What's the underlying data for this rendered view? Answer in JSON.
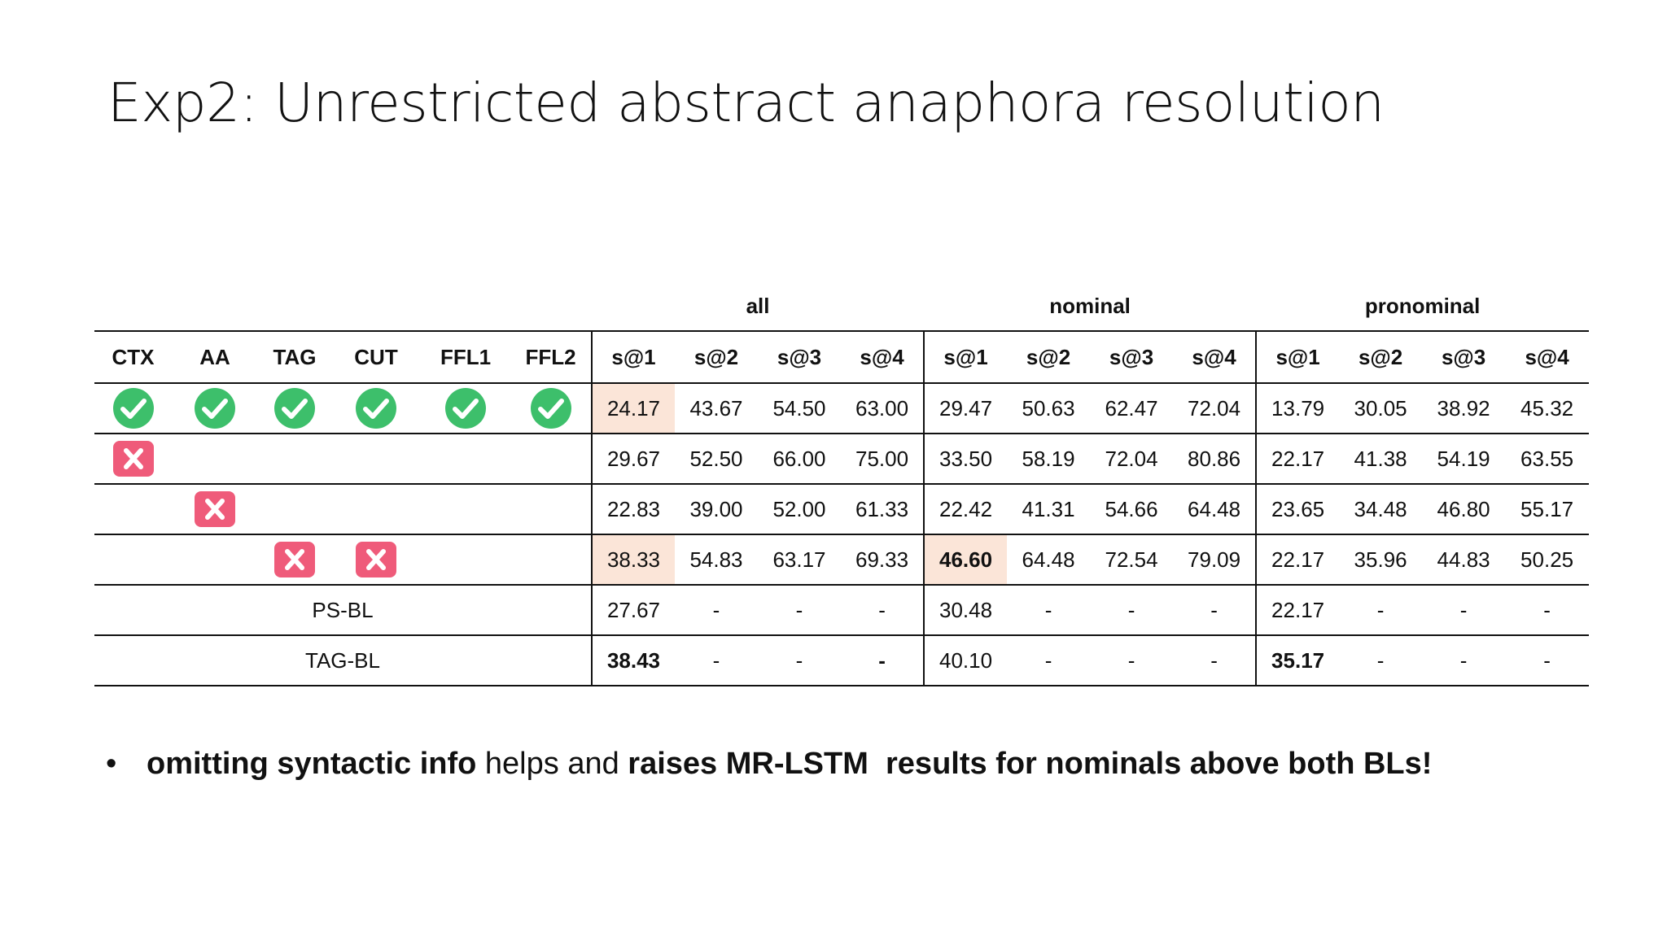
{
  "title": "Exp2: Unrestricted abstract anaphora resolution",
  "table": {
    "group_headers": [
      "all",
      "nominal",
      "pronominal"
    ],
    "feature_headers": [
      "CTX",
      "AA",
      "TAG",
      "CUT",
      "FFL1",
      "FFL2"
    ],
    "metric_headers": [
      "s@1",
      "s@2",
      "s@3",
      "s@4",
      "s@1",
      "s@2",
      "s@3",
      "s@4",
      "s@1",
      "s@2",
      "s@3",
      "s@4"
    ],
    "rows": [
      {
        "features": [
          "check",
          "check",
          "check",
          "check",
          "check",
          "check"
        ],
        "values": [
          "24.17",
          "43.67",
          "54.50",
          "63.00",
          "29.47",
          "50.63",
          "62.47",
          "72.04",
          "13.79",
          "30.05",
          "38.92",
          "45.32"
        ],
        "highlight": [
          0
        ],
        "bold": []
      },
      {
        "features": [
          "cross",
          "",
          "",
          "",
          "",
          ""
        ],
        "values": [
          "29.67",
          "52.50",
          "66.00",
          "75.00",
          "33.50",
          "58.19",
          "72.04",
          "80.86",
          "22.17",
          "41.38",
          "54.19",
          "63.55"
        ],
        "highlight": [],
        "bold": []
      },
      {
        "features": [
          "",
          "cross",
          "",
          "",
          "",
          ""
        ],
        "values": [
          "22.83",
          "39.00",
          "52.00",
          "61.33",
          "22.42",
          "41.31",
          "54.66",
          "64.48",
          "23.65",
          "34.48",
          "46.80",
          "55.17"
        ],
        "highlight": [],
        "bold": []
      },
      {
        "features": [
          "",
          "",
          "cross",
          "cross",
          "",
          ""
        ],
        "values": [
          "38.33",
          "54.83",
          "63.17",
          "69.33",
          "46.60",
          "64.48",
          "72.54",
          "79.09",
          "22.17",
          "35.96",
          "44.83",
          "50.25"
        ],
        "highlight": [
          0,
          4
        ],
        "bold": [
          4
        ]
      },
      {
        "label": "PS-BL",
        "values": [
          "27.67",
          "-",
          "-",
          "-",
          "30.48",
          "-",
          "-",
          "-",
          "22.17",
          "-",
          "-",
          "-"
        ],
        "highlight": [],
        "bold": []
      },
      {
        "label": "TAG-BL",
        "values": [
          "38.43",
          "-",
          "-",
          "-",
          "40.10",
          "-",
          "-",
          "-",
          "35.17",
          "-",
          "-",
          "-"
        ],
        "highlight": [],
        "bold": [
          0,
          3,
          8
        ]
      }
    ]
  },
  "bullet": {
    "marker": "•",
    "part1": "omitting syntactic info",
    "part2": " helps and ",
    "part3": "raises MR-LSTM  results for nominals above both BLs!"
  },
  "colors": {
    "check": "#3dbf6b",
    "cross": "#ef5b7a",
    "highlight": "#fbe5d8"
  }
}
